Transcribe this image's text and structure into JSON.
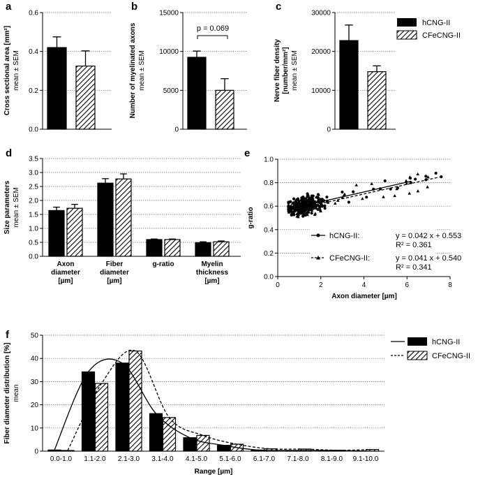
{
  "legend": {
    "series1": "hCNG-II",
    "series2": "CFeCNG-II"
  },
  "colors": {
    "solid": "#000000",
    "hatch": "#000000",
    "background": "#ffffff"
  },
  "chart_data": [
    {
      "panel": "a",
      "type": "bar",
      "ylabel": "Cross sectional area [mm²]",
      "ysublabel": "mean ± SEM",
      "ylim": [
        0,
        0.6
      ],
      "yticks": [
        "0.0",
        "0.2",
        "0.4",
        "0.6"
      ],
      "series": [
        {
          "name": "hCNG-II",
          "values": [
            0.42
          ],
          "errors": [
            0.055
          ]
        },
        {
          "name": "CFeCNG-II",
          "values": [
            0.325
          ],
          "errors": [
            0.078
          ]
        }
      ]
    },
    {
      "panel": "b",
      "type": "bar",
      "ylabel": "Number of myelinated axons",
      "ysublabel": "mean ± SEM",
      "ylim": [
        0,
        15000
      ],
      "yticks": [
        "0",
        "5000",
        "10000",
        "15000"
      ],
      "annotation": "p = 0.069",
      "series": [
        {
          "name": "hCNG-II",
          "values": [
            9250
          ],
          "errors": [
            800
          ]
        },
        {
          "name": "CFeCNG-II",
          "values": [
            5000
          ],
          "errors": [
            1500
          ]
        }
      ]
    },
    {
      "panel": "c",
      "type": "bar",
      "ylabel": "Nerve fiber density",
      "ylabel2": "[number/mm²]",
      "ysublabel": "mean ± SEM",
      "ylim": [
        0,
        30000
      ],
      "yticks": [
        "0",
        "10000",
        "20000",
        "30000"
      ],
      "series": [
        {
          "name": "hCNG-II",
          "values": [
            22800
          ],
          "errors": [
            4000
          ]
        },
        {
          "name": "CFeCNG-II",
          "values": [
            14800
          ],
          "errors": [
            1500
          ]
        }
      ]
    },
    {
      "panel": "d",
      "type": "bar",
      "ylabel": "Size parameters",
      "ysublabel": "mean ± SEM",
      "ylim": [
        0,
        3.5
      ],
      "yticks": [
        "0.0",
        "0.5",
        "1.0",
        "1.5",
        "2.0",
        "2.5",
        "3.0",
        "3.5"
      ],
      "categories": [
        [
          "Axon",
          "diameter",
          "[µm]"
        ],
        [
          "Fiber",
          "diameter",
          "[µm]"
        ],
        [
          "g-ratio"
        ],
        [
          "Myelin",
          "thickness",
          "[µm]"
        ]
      ],
      "series": [
        {
          "name": "hCNG-II",
          "values": [
            1.64,
            2.62,
            0.6,
            0.49
          ],
          "errors": [
            0.12,
            0.16,
            0.02,
            0.03
          ]
        },
        {
          "name": "CFeCNG-II",
          "values": [
            1.72,
            2.77,
            0.6,
            0.52
          ],
          "errors": [
            0.14,
            0.18,
            0.02,
            0.03
          ]
        }
      ]
    },
    {
      "panel": "e",
      "type": "scatter",
      "xlabel": "Axon diameter [µm]",
      "ylabel": "g-ratio",
      "xlim": [
        0,
        8
      ],
      "ylim": [
        0,
        1.0
      ],
      "xticks": [
        "0",
        "2",
        "4",
        "6",
        "8"
      ],
      "yticks": [
        "0.0",
        "0.2",
        "0.4",
        "0.6",
        "0.8",
        "1.0"
      ],
      "fits": [
        {
          "name": "hCNG-II:",
          "equation": "y = 0.042 x + 0.553",
          "r2": "R² = 0.361",
          "slope": 0.042,
          "intercept": 0.553,
          "x_range": [
            0.5,
            6.2
          ]
        },
        {
          "name": "CFeCNG-II:",
          "equation": "y = 0.041 x + 0.540",
          "r2": "R² = 0.341",
          "slope": 0.041,
          "intercept": 0.54,
          "x_range": [
            0.5,
            7.5
          ]
        }
      ],
      "scatter_model": {
        "n_points": 340,
        "x_center": 1.3,
        "x_spread": 0.55,
        "x_max": 7.6,
        "y_noise": 0.055
      }
    },
    {
      "panel": "f",
      "type": "bar",
      "xlabel": "Range [µm]",
      "ylabel": "Fiber diameter distribution [%]",
      "ysublabel": "mean",
      "ylim": [
        0,
        50
      ],
      "yticks": [
        "0",
        "10",
        "20",
        "30",
        "40",
        "50"
      ],
      "categories": [
        "0.0-1.0",
        "1.1-2.0",
        "2.1-3.0",
        "3.1-4.0",
        "4.1-5.0",
        "5.1-6.0",
        "6.1-7.0",
        "7.1-8.0",
        "8.1-9.0",
        "9.1-10.0"
      ],
      "series": [
        {
          "name": "hCNG-II",
          "values": [
            0.5,
            34.2,
            38.0,
            16.2,
            5.8,
            2.5,
            0.5,
            0.3,
            0.3,
            0.1
          ]
        },
        {
          "name": "CFeCNG-II",
          "values": [
            0.3,
            29.2,
            43.2,
            14.5,
            6.8,
            3.0,
            1.0,
            0.9,
            0.4,
            0.7
          ]
        }
      ]
    }
  ]
}
